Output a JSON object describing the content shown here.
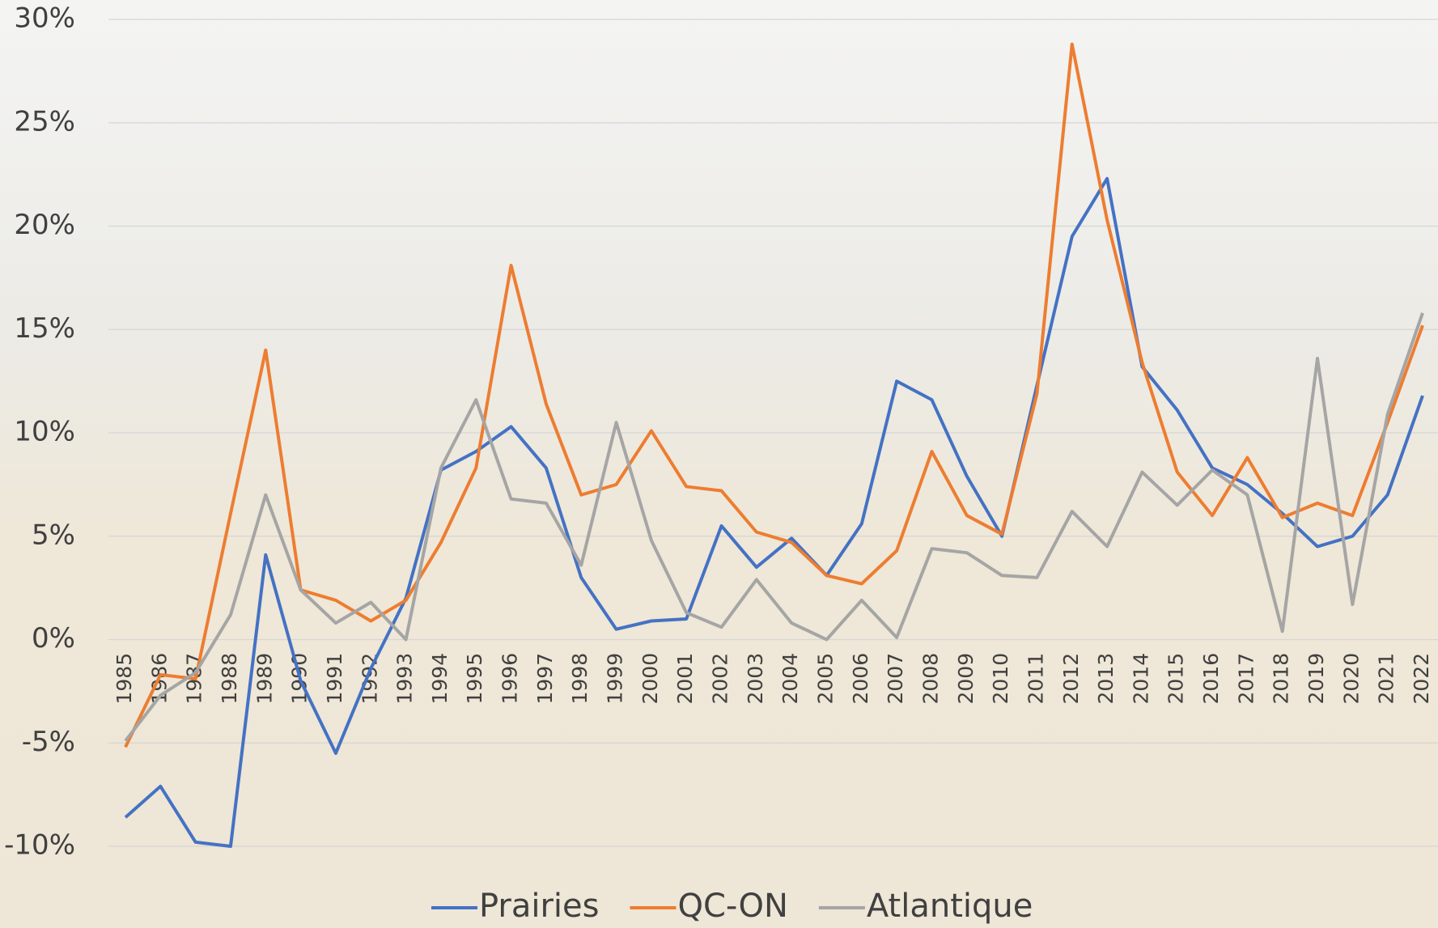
{
  "chart_data": {
    "type": "line",
    "categories": [
      "1985",
      "1986",
      "1987",
      "1988",
      "1989",
      "1990",
      "1991",
      "1992",
      "1993",
      "1994",
      "1995",
      "1996",
      "1997",
      "1998",
      "1999",
      "2000",
      "2001",
      "2002",
      "2003",
      "2004",
      "2005",
      "2006",
      "2007",
      "2008",
      "2009",
      "2010",
      "2011",
      "2012",
      "2013",
      "2014",
      "2015",
      "2016",
      "2017",
      "2018",
      "2019",
      "2020",
      "2021",
      "2022"
    ],
    "series": [
      {
        "name": "Prairies",
        "color": "#4472c4",
        "values": [
          -8.6,
          -7.1,
          -9.8,
          -10.0,
          4.1,
          -2.0,
          -5.5,
          -1.4,
          2.0,
          8.2,
          9.1,
          10.3,
          8.3,
          3.0,
          0.5,
          0.9,
          1.0,
          5.5,
          3.5,
          4.9,
          3.1,
          5.6,
          12.5,
          11.6,
          7.9,
          5.0,
          12.3,
          19.5,
          22.3,
          13.2,
          11.1,
          8.3,
          7.5,
          6.1,
          4.5,
          5.0,
          7.0,
          11.8
        ]
      },
      {
        "name": "QC-ON",
        "color": "#ed7d31",
        "values": [
          -5.2,
          -1.7,
          -1.9,
          6.1,
          14.0,
          2.4,
          1.9,
          0.9,
          1.9,
          4.7,
          8.3,
          18.1,
          11.4,
          7.0,
          7.5,
          10.1,
          7.4,
          7.2,
          5.2,
          4.7,
          3.1,
          2.7,
          4.3,
          9.1,
          6.0,
          5.1,
          11.9,
          28.8,
          20.3,
          13.4,
          8.1,
          6.0,
          8.8,
          5.9,
          6.6,
          6.0,
          10.5,
          15.2
        ]
      },
      {
        "name": "Atlantique",
        "color": "#a5a5a5",
        "values": [
          -4.9,
          -2.7,
          -1.6,
          1.2,
          7.0,
          2.4,
          0.8,
          1.8,
          0.0,
          8.3,
          11.6,
          6.8,
          6.6,
          3.6,
          10.5,
          4.8,
          1.3,
          0.6,
          2.9,
          0.8,
          0.0,
          1.9,
          0.1,
          4.4,
          4.2,
          3.1,
          3.0,
          6.2,
          4.5,
          8.1,
          6.5,
          8.2,
          7.0,
          0.4,
          13.6,
          1.7,
          10.9,
          15.8
        ]
      }
    ],
    "ylim": [
      -10,
      30
    ],
    "yticks": [
      {
        "value": -10,
        "label": "-10%"
      },
      {
        "value": -5,
        "label": "-5%"
      },
      {
        "value": 0,
        "label": "0%"
      },
      {
        "value": 5,
        "label": "5%"
      },
      {
        "value": 10,
        "label": "10%"
      },
      {
        "value": 15,
        "label": "15%"
      },
      {
        "value": 20,
        "label": "20%"
      },
      {
        "value": 25,
        "label": "25%"
      },
      {
        "value": 30,
        "label": "30%"
      }
    ],
    "grid": true,
    "legend": "bottom"
  }
}
